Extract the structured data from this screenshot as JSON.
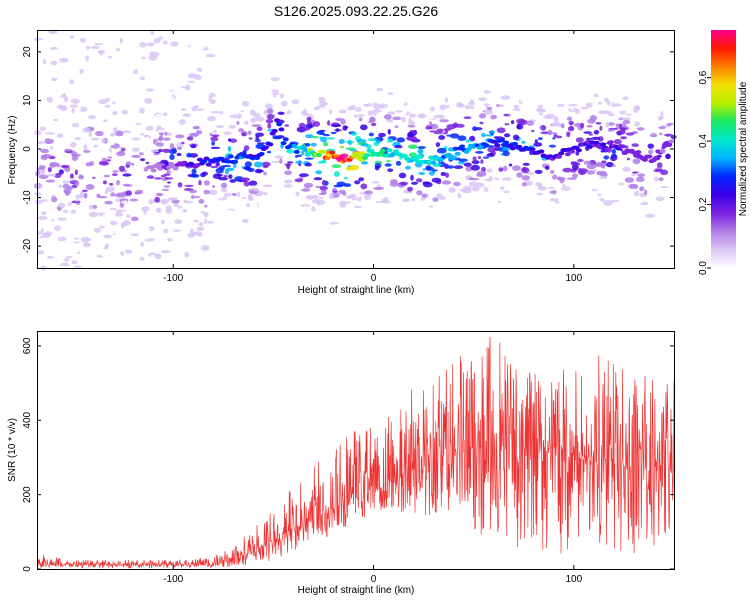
{
  "title": "S126.2025.093.22.25.G26",
  "chart_data": [
    {
      "type": "heatmap",
      "xlabel": "Height of straight line (km)",
      "ylabel": "Frequency (Hz)",
      "xlim": [
        -168,
        150
      ],
      "ylim": [
        -24.5,
        24.5
      ],
      "xticks": [
        -100,
        0,
        100
      ],
      "yticks": [
        -20,
        -10,
        0,
        10,
        20
      ],
      "colorbar": {
        "label": "Normalized spectral amplitude",
        "range": [
          0,
          0.75
        ],
        "ticks": [
          0.0,
          0.2,
          0.4,
          0.6
        ],
        "colors": [
          "#ffffff",
          "#d9c6f4",
          "#b27de8",
          "#7a22e0",
          "#3a00e8",
          "#0028ff",
          "#00b4ff",
          "#00e8d0",
          "#18e860",
          "#b8f000",
          "#f0e000",
          "#ff8000",
          "#ff1800",
          "#ff0090"
        ]
      },
      "ridge": {
        "x": [
          -150,
          -120,
          -100,
          -80,
          -70,
          -60,
          -52,
          -48,
          -45,
          -40,
          -30,
          -20,
          -15,
          -10,
          0,
          10,
          20,
          30,
          40,
          50,
          60,
          70,
          80,
          90,
          100,
          110,
          120,
          130,
          140,
          150
        ],
        "y": [
          -5,
          -5,
          -3.5,
          -2.5,
          -2,
          -2,
          1,
          6,
          2,
          0,
          -1,
          -1.5,
          -2,
          -1.5,
          -1,
          -1,
          -2,
          -2.5,
          -0.5,
          0.5,
          1.5,
          0.5,
          0,
          -1.5,
          0,
          1,
          0.5,
          -1,
          -2,
          2
        ],
        "peak_amplitude": [
          0.1,
          0.12,
          0.18,
          0.28,
          0.35,
          0.3,
          0.28,
          0.25,
          0.3,
          0.35,
          0.5,
          0.7,
          0.75,
          0.6,
          0.45,
          0.4,
          0.42,
          0.4,
          0.38,
          0.35,
          0.3,
          0.3,
          0.28,
          0.25,
          0.25,
          0.25,
          0.22,
          0.2,
          0.2,
          0.18
        ]
      }
    },
    {
      "type": "line",
      "xlabel": "Height of straight line (km)",
      "ylabel": "SNR (10 * v/v)",
      "xlim": [
        -168,
        150
      ],
      "ylim": [
        0,
        640
      ],
      "xticks": [
        -100,
        0,
        100
      ],
      "yticks": [
        0,
        200,
        400,
        600
      ],
      "color": "#ee3333",
      "envelope": {
        "x": [
          -168,
          -150,
          -120,
          -100,
          -80,
          -70,
          -60,
          -50,
          -40,
          -30,
          -20,
          -10,
          0,
          10,
          20,
          30,
          40,
          50,
          60,
          70,
          80,
          90,
          100,
          110,
          120,
          130,
          140,
          150
        ],
        "mean": [
          12,
          12,
          12,
          12,
          12,
          25,
          50,
          80,
          110,
          140,
          165,
          190,
          210,
          240,
          270,
          300,
          310,
          320,
          330,
          330,
          320,
          310,
          300,
          300,
          290,
          280,
          280,
          280
        ],
        "max": [
          40,
          25,
          25,
          25,
          35,
          60,
          110,
          160,
          230,
          300,
          330,
          370,
          410,
          450,
          490,
          520,
          580,
          600,
          640,
          560,
          530,
          520,
          560,
          580,
          560,
          540,
          550,
          520
        ],
        "min": [
          2,
          2,
          2,
          2,
          2,
          5,
          10,
          20,
          40,
          70,
          90,
          110,
          130,
          140,
          150,
          140,
          120,
          100,
          80,
          60,
          50,
          40,
          40,
          50,
          40,
          40,
          50,
          60
        ]
      }
    }
  ]
}
